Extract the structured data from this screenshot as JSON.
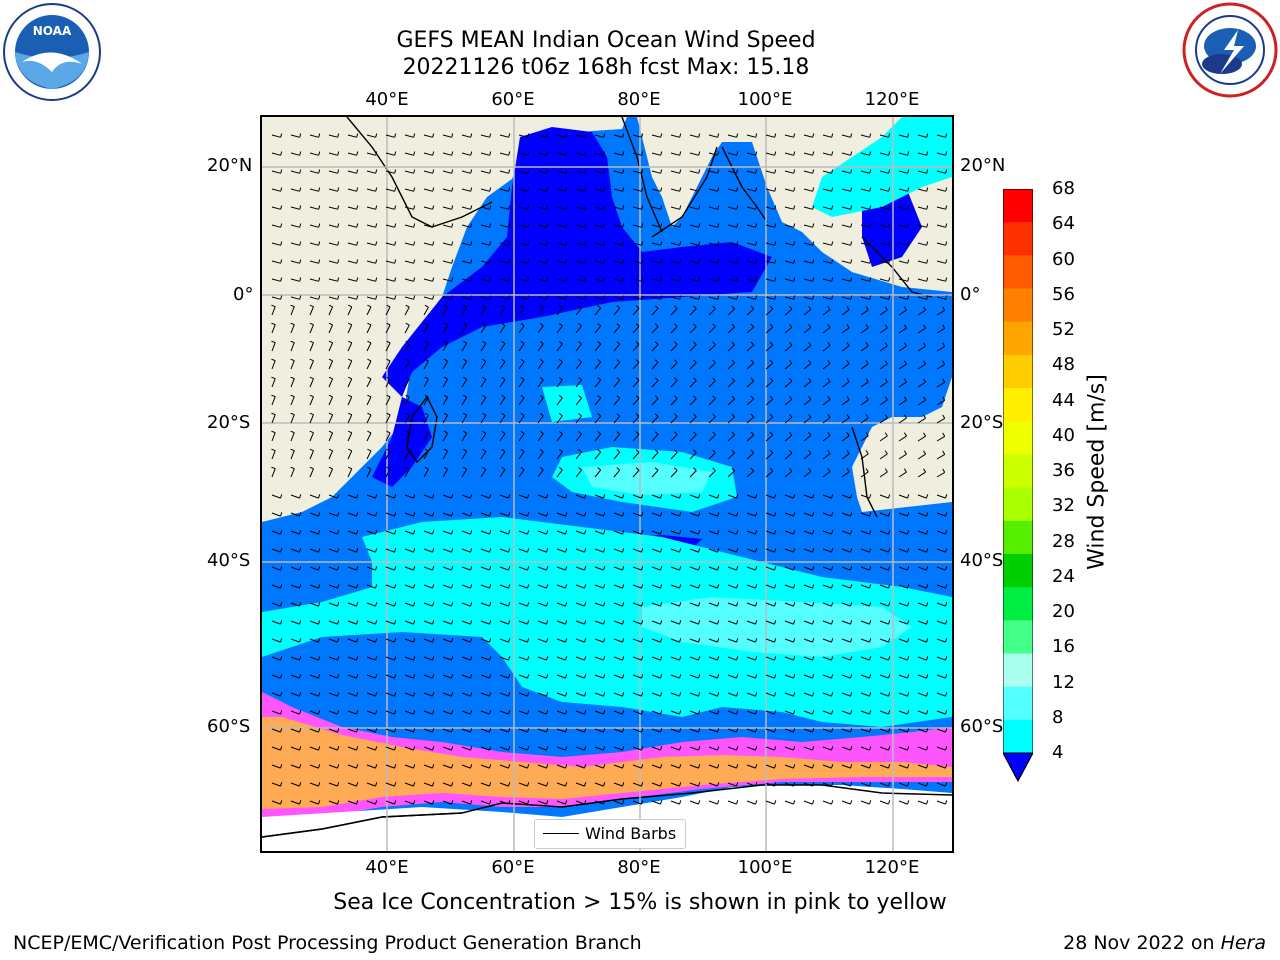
{
  "title": {
    "line1": "GEFS MEAN Indian Ocean Wind Speed",
    "line2": "20221126 t06z 168h fcst   Max: 15.18"
  },
  "axes": {
    "lon_labels": [
      "40°E",
      "60°E",
      "80°E",
      "100°E",
      "120°E"
    ],
    "lat_labels": [
      "20°N",
      "0°",
      "20°S",
      "40°S",
      "60°S"
    ]
  },
  "colorbar": {
    "label": "Wind Speed [m/s]",
    "ticks": [
      "68",
      "64",
      "60",
      "56",
      "52",
      "48",
      "44",
      "40",
      "36",
      "32",
      "28",
      "24",
      "20",
      "16",
      "12",
      "8",
      "4"
    ],
    "colors": [
      "#ff0000",
      "#ff3000",
      "#ff5a00",
      "#ff7f00",
      "#ffa500",
      "#ffcc00",
      "#ffee00",
      "#eeff00",
      "#ccff00",
      "#aaff00",
      "#55ee00",
      "#00cc00",
      "#00ee44",
      "#44ff88",
      "#aaffee",
      "#55ffff",
      "#00ffff",
      "#0077ff"
    ],
    "under_color": "#0000ff"
  },
  "legend": {
    "wind_barbs": "Wind Barbs"
  },
  "caption": "Sea Ice Concentration > 15% is shown in pink to yellow",
  "footer": {
    "left": "NCEP/EMC/Verification Post Processing Product Generation Branch",
    "right_date": "28 Nov 2022 on ",
    "right_host": "Hera"
  },
  "logos": {
    "noaa": "NOAA",
    "noaa_ring": "NATIONAL OCEANIC AND ATMOSPHERIC ADMINISTRATION · U.S. DEPARTMENT OF COMMERCE",
    "nws_ring": "NATIONAL WEATHER SERVICE"
  },
  "colors": {
    "land": "#efeedf",
    "ocean_dark": "#0000ff",
    "ocean_mid": "#0077ff",
    "ocean_light": "#00ffff",
    "ocean_pale": "#55ffff",
    "ice_pink": "#ff55ff",
    "ice_orange": "#ffaa55"
  }
}
